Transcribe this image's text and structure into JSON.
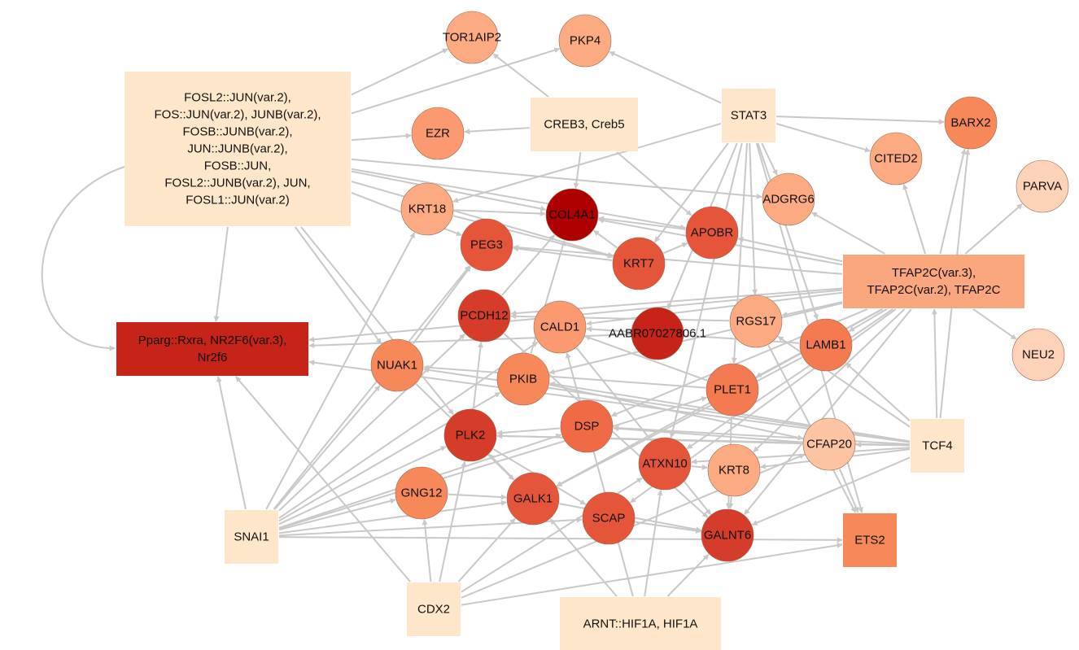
{
  "network": {
    "nodes": [
      {
        "id": "fosl2",
        "shape": "rect",
        "color": "#fde6c9",
        "lines": [
          "FOSL2::JUN(var.2),",
          "FOS::JUN(var.2), JUNB(var.2),",
          "FOSB::JUNB(var.2),",
          "JUN::JUNB(var.2),",
          "FOSB::JUN,",
          "FOSL2::JUNB(var.2), JUN,",
          "FOSL1::JUN(var.2)"
        ]
      },
      {
        "id": "creb3",
        "shape": "rect",
        "color": "#fde6c9",
        "lines": [
          "CREB3, Creb5"
        ]
      },
      {
        "id": "stat3",
        "shape": "rect",
        "color": "#fde6c9",
        "lines": [
          "STAT3"
        ]
      },
      {
        "id": "tfap2c",
        "shape": "rect",
        "color": "#fba77e",
        "lines": [
          "TFAP2C(var.3),",
          "TFAP2C(var.2), TFAP2C"
        ]
      },
      {
        "id": "pparg",
        "shape": "rect",
        "color": "#c62319",
        "lines": [
          "Pparg::Rxra, NR2F6(var.3),",
          "Nr2f6"
        ]
      },
      {
        "id": "tcf4",
        "shape": "rect",
        "color": "#fde6c9",
        "lines": [
          "TCF4"
        ]
      },
      {
        "id": "ets2",
        "shape": "rect",
        "color": "#f7885a",
        "lines": [
          "ETS2"
        ]
      },
      {
        "id": "snai1",
        "shape": "rect",
        "color": "#fde6c9",
        "lines": [
          "SNAI1"
        ]
      },
      {
        "id": "cdx2",
        "shape": "rect",
        "color": "#fde6c9",
        "lines": [
          "CDX2"
        ]
      },
      {
        "id": "arnt",
        "shape": "rect",
        "color": "#fde6c9",
        "lines": [
          "ARNT::HIF1A, HIF1A"
        ]
      },
      {
        "id": "tor1aip2",
        "shape": "circle",
        "color": "#fcaa82",
        "lines": [
          "TOR1AIP2"
        ]
      },
      {
        "id": "pkp4",
        "shape": "circle",
        "color": "#fcaa82",
        "lines": [
          "PKP4"
        ]
      },
      {
        "id": "ezr",
        "shape": "circle",
        "color": "#fb9a70",
        "lines": [
          "EZR"
        ]
      },
      {
        "id": "barx2",
        "shape": "circle",
        "color": "#f7885a",
        "lines": [
          "BARX2"
        ]
      },
      {
        "id": "cited2",
        "shape": "circle",
        "color": "#fcaa82",
        "lines": [
          "CITED2"
        ]
      },
      {
        "id": "parva",
        "shape": "circle",
        "color": "#fdd2b8",
        "lines": [
          "PARVA"
        ]
      },
      {
        "id": "adgrg6",
        "shape": "circle",
        "color": "#fcaa82",
        "lines": [
          "ADGRG6"
        ]
      },
      {
        "id": "krt18",
        "shape": "circle",
        "color": "#fcaa82",
        "lines": [
          "KRT18"
        ]
      },
      {
        "id": "col4a1",
        "shape": "circle",
        "color": "#ae0000",
        "lines": [
          "COL4A1"
        ]
      },
      {
        "id": "apobr",
        "shape": "circle",
        "color": "#e5553a",
        "lines": [
          "APOBR"
        ]
      },
      {
        "id": "peg3",
        "shape": "circle",
        "color": "#e5553a",
        "lines": [
          "PEG3"
        ]
      },
      {
        "id": "krt7",
        "shape": "circle",
        "color": "#e5553a",
        "lines": [
          "KRT7"
        ]
      },
      {
        "id": "pcdh12",
        "shape": "circle",
        "color": "#d53d2a",
        "lines": [
          "PCDH12"
        ]
      },
      {
        "id": "cald1",
        "shape": "circle",
        "color": "#fb9a70",
        "lines": [
          "CALD1"
        ]
      },
      {
        "id": "aabr",
        "shape": "circle",
        "color": "#c62319",
        "lines": [
          "AABR07027806.1"
        ]
      },
      {
        "id": "rgs17",
        "shape": "circle",
        "color": "#fcaa82",
        "lines": [
          "RGS17"
        ]
      },
      {
        "id": "lamb1",
        "shape": "circle",
        "color": "#f47a52",
        "lines": [
          "LAMB1"
        ]
      },
      {
        "id": "neu2",
        "shape": "circle",
        "color": "#fdd2b8",
        "lines": [
          "NEU2"
        ]
      },
      {
        "id": "nuak1",
        "shape": "circle",
        "color": "#f7885a",
        "lines": [
          "NUAK1"
        ]
      },
      {
        "id": "pkib",
        "shape": "circle",
        "color": "#f7885a",
        "lines": [
          "PKIB"
        ]
      },
      {
        "id": "plet1",
        "shape": "circle",
        "color": "#f47a52",
        "lines": [
          "PLET1"
        ]
      },
      {
        "id": "plk2",
        "shape": "circle",
        "color": "#d53d2a",
        "lines": [
          "PLK2"
        ]
      },
      {
        "id": "dsp",
        "shape": "circle",
        "color": "#f06a45",
        "lines": [
          "DSP"
        ]
      },
      {
        "id": "cfap20",
        "shape": "circle",
        "color": "#fdc4a4",
        "lines": [
          "CFAP20"
        ]
      },
      {
        "id": "atxn10",
        "shape": "circle",
        "color": "#e5553a",
        "lines": [
          "ATXN10"
        ]
      },
      {
        "id": "krt8",
        "shape": "circle",
        "color": "#fcaa82",
        "lines": [
          "KRT8"
        ]
      },
      {
        "id": "gng12",
        "shape": "circle",
        "color": "#f7885a",
        "lines": [
          "GNG12"
        ]
      },
      {
        "id": "galk1",
        "shape": "circle",
        "color": "#e5553a",
        "lines": [
          "GALK1"
        ]
      },
      {
        "id": "scap",
        "shape": "circle",
        "color": "#e5553a",
        "lines": [
          "SCAP"
        ]
      },
      {
        "id": "galnt6",
        "shape": "circle",
        "color": "#d53d2a",
        "lines": [
          "GALNT6"
        ]
      }
    ],
    "edges": [
      [
        "fosl2",
        "tor1aip2"
      ],
      [
        "fosl2",
        "pkp4"
      ],
      [
        "fosl2",
        "ezr"
      ],
      [
        "fosl2",
        "col4a1"
      ],
      [
        "fosl2",
        "apobr"
      ],
      [
        "fosl2",
        "adgrg6"
      ],
      [
        "fosl2",
        "krt7"
      ],
      [
        "fosl2",
        "peg3"
      ],
      [
        "fosl2",
        "pparg"
      ],
      [
        "fosl2",
        "nuak1"
      ],
      [
        "fosl2",
        "plk2"
      ],
      [
        "creb3",
        "ezr"
      ],
      [
        "creb3",
        "tor1aip2"
      ],
      [
        "creb3",
        "col4a1"
      ],
      [
        "creb3",
        "apobr"
      ],
      [
        "stat3",
        "pkp4"
      ],
      [
        "stat3",
        "barx2"
      ],
      [
        "stat3",
        "cited2"
      ],
      [
        "stat3",
        "krt18"
      ],
      [
        "stat3",
        "adgrg6"
      ],
      [
        "stat3",
        "krt7"
      ],
      [
        "stat3",
        "lamb1"
      ],
      [
        "stat3",
        "ets2"
      ],
      [
        "stat3",
        "plet1"
      ],
      [
        "stat3",
        "atxn10"
      ],
      [
        "stat3",
        "rgs17"
      ],
      [
        "stat3",
        "aabr"
      ],
      [
        "tfap2c",
        "barx2"
      ],
      [
        "tfap2c",
        "cited2"
      ],
      [
        "tfap2c",
        "parva"
      ],
      [
        "tfap2c",
        "neu2"
      ],
      [
        "tfap2c",
        "adgrg6"
      ],
      [
        "tfap2c",
        "apobr"
      ],
      [
        "tfap2c",
        "col4a1"
      ],
      [
        "tfap2c",
        "peg3"
      ],
      [
        "tfap2c",
        "pcdh12"
      ],
      [
        "tfap2c",
        "pparg"
      ],
      [
        "tfap2c",
        "rgs17"
      ],
      [
        "tfap2c",
        "lamb1"
      ],
      [
        "tfap2c",
        "plet1"
      ],
      [
        "tfap2c",
        "cald1"
      ],
      [
        "tfap2c",
        "pkib"
      ],
      [
        "tfap2c",
        "dsp"
      ],
      [
        "tfap2c",
        "galnt6"
      ],
      [
        "tfap2c",
        "scap"
      ],
      [
        "tfap2c",
        "krt8"
      ],
      [
        "tfap2c",
        "galk1"
      ],
      [
        "tfap2c",
        "atxn10"
      ],
      [
        "tcf4",
        "tfap2c"
      ],
      [
        "tcf4",
        "barx2"
      ],
      [
        "tcf4",
        "cfap20"
      ],
      [
        "tcf4",
        "plk2"
      ],
      [
        "tcf4",
        "nuak1"
      ],
      [
        "tcf4",
        "dsp"
      ],
      [
        "tcf4",
        "krt8"
      ],
      [
        "tcf4",
        "galnt6"
      ],
      [
        "tcf4",
        "pparg"
      ],
      [
        "tcf4",
        "rgs17"
      ],
      [
        "tcf4",
        "atxn10"
      ],
      [
        "tcf4",
        "pkib"
      ],
      [
        "tcf4",
        "lamb1"
      ],
      [
        "snai1",
        "pparg"
      ],
      [
        "snai1",
        "gng12"
      ],
      [
        "snai1",
        "galk1"
      ],
      [
        "snai1",
        "scap"
      ],
      [
        "snai1",
        "ets2"
      ],
      [
        "snai1",
        "plet1"
      ],
      [
        "snai1",
        "nuak1"
      ],
      [
        "snai1",
        "pcdh12"
      ],
      [
        "snai1",
        "peg3"
      ],
      [
        "snai1",
        "krt18"
      ],
      [
        "snai1",
        "dsp"
      ],
      [
        "snai1",
        "cald1"
      ],
      [
        "snai1",
        "plk2"
      ],
      [
        "snai1",
        "pkib"
      ],
      [
        "cdx2",
        "pparg"
      ],
      [
        "cdx2",
        "gng12"
      ],
      [
        "cdx2",
        "ets2"
      ],
      [
        "cdx2",
        "atxn10"
      ],
      [
        "cdx2",
        "plk2"
      ],
      [
        "cdx2",
        "galk1"
      ],
      [
        "cdx2",
        "cfap20"
      ],
      [
        "arnt",
        "galnt6"
      ],
      [
        "arnt",
        "atxn10"
      ],
      [
        "arnt",
        "cald1"
      ],
      [
        "arnt",
        "galk1"
      ],
      [
        "krt7",
        "col4a1"
      ],
      [
        "krt7",
        "peg3"
      ],
      [
        "apobr",
        "col4a1"
      ],
      [
        "krt7",
        "apobr"
      ],
      [
        "aabr",
        "cald1"
      ],
      [
        "aabr",
        "pparg"
      ],
      [
        "pcdh12",
        "col4a1"
      ],
      [
        "nuak1",
        "peg3"
      ],
      [
        "pkib",
        "col4a1"
      ],
      [
        "plk2",
        "pcdh12"
      ],
      [
        "rgs17",
        "pcdh12"
      ],
      [
        "lamb1",
        "cald1"
      ],
      [
        "plet1",
        "nuak1"
      ],
      [
        "plet1",
        "cald1"
      ],
      [
        "cfap20",
        "plk2"
      ],
      [
        "cfap20",
        "dsp"
      ],
      [
        "cfap20",
        "ets2"
      ],
      [
        "krt8",
        "galnt6"
      ],
      [
        "atxn10",
        "krt8"
      ],
      [
        "krt18",
        "col4a1"
      ],
      [
        "galk1",
        "galnt6"
      ],
      [
        "gng12",
        "galk1"
      ],
      [
        "scap",
        "galnt6"
      ],
      [
        "dsp",
        "plk2"
      ],
      [
        "galk1",
        "plk2"
      ],
      [
        "cald1",
        "galnt6"
      ],
      [
        "rgs17",
        "ets2"
      ],
      [
        "plk2",
        "scap"
      ],
      [
        "nuak1",
        "galk1"
      ],
      [
        "krt18",
        "krt7"
      ],
      [
        "pcdh12",
        "galnt6"
      ],
      [
        "pkib",
        "cfap20"
      ],
      [
        "lamb1",
        "galk1"
      ],
      [
        "plet1",
        "galnt6"
      ]
    ]
  }
}
